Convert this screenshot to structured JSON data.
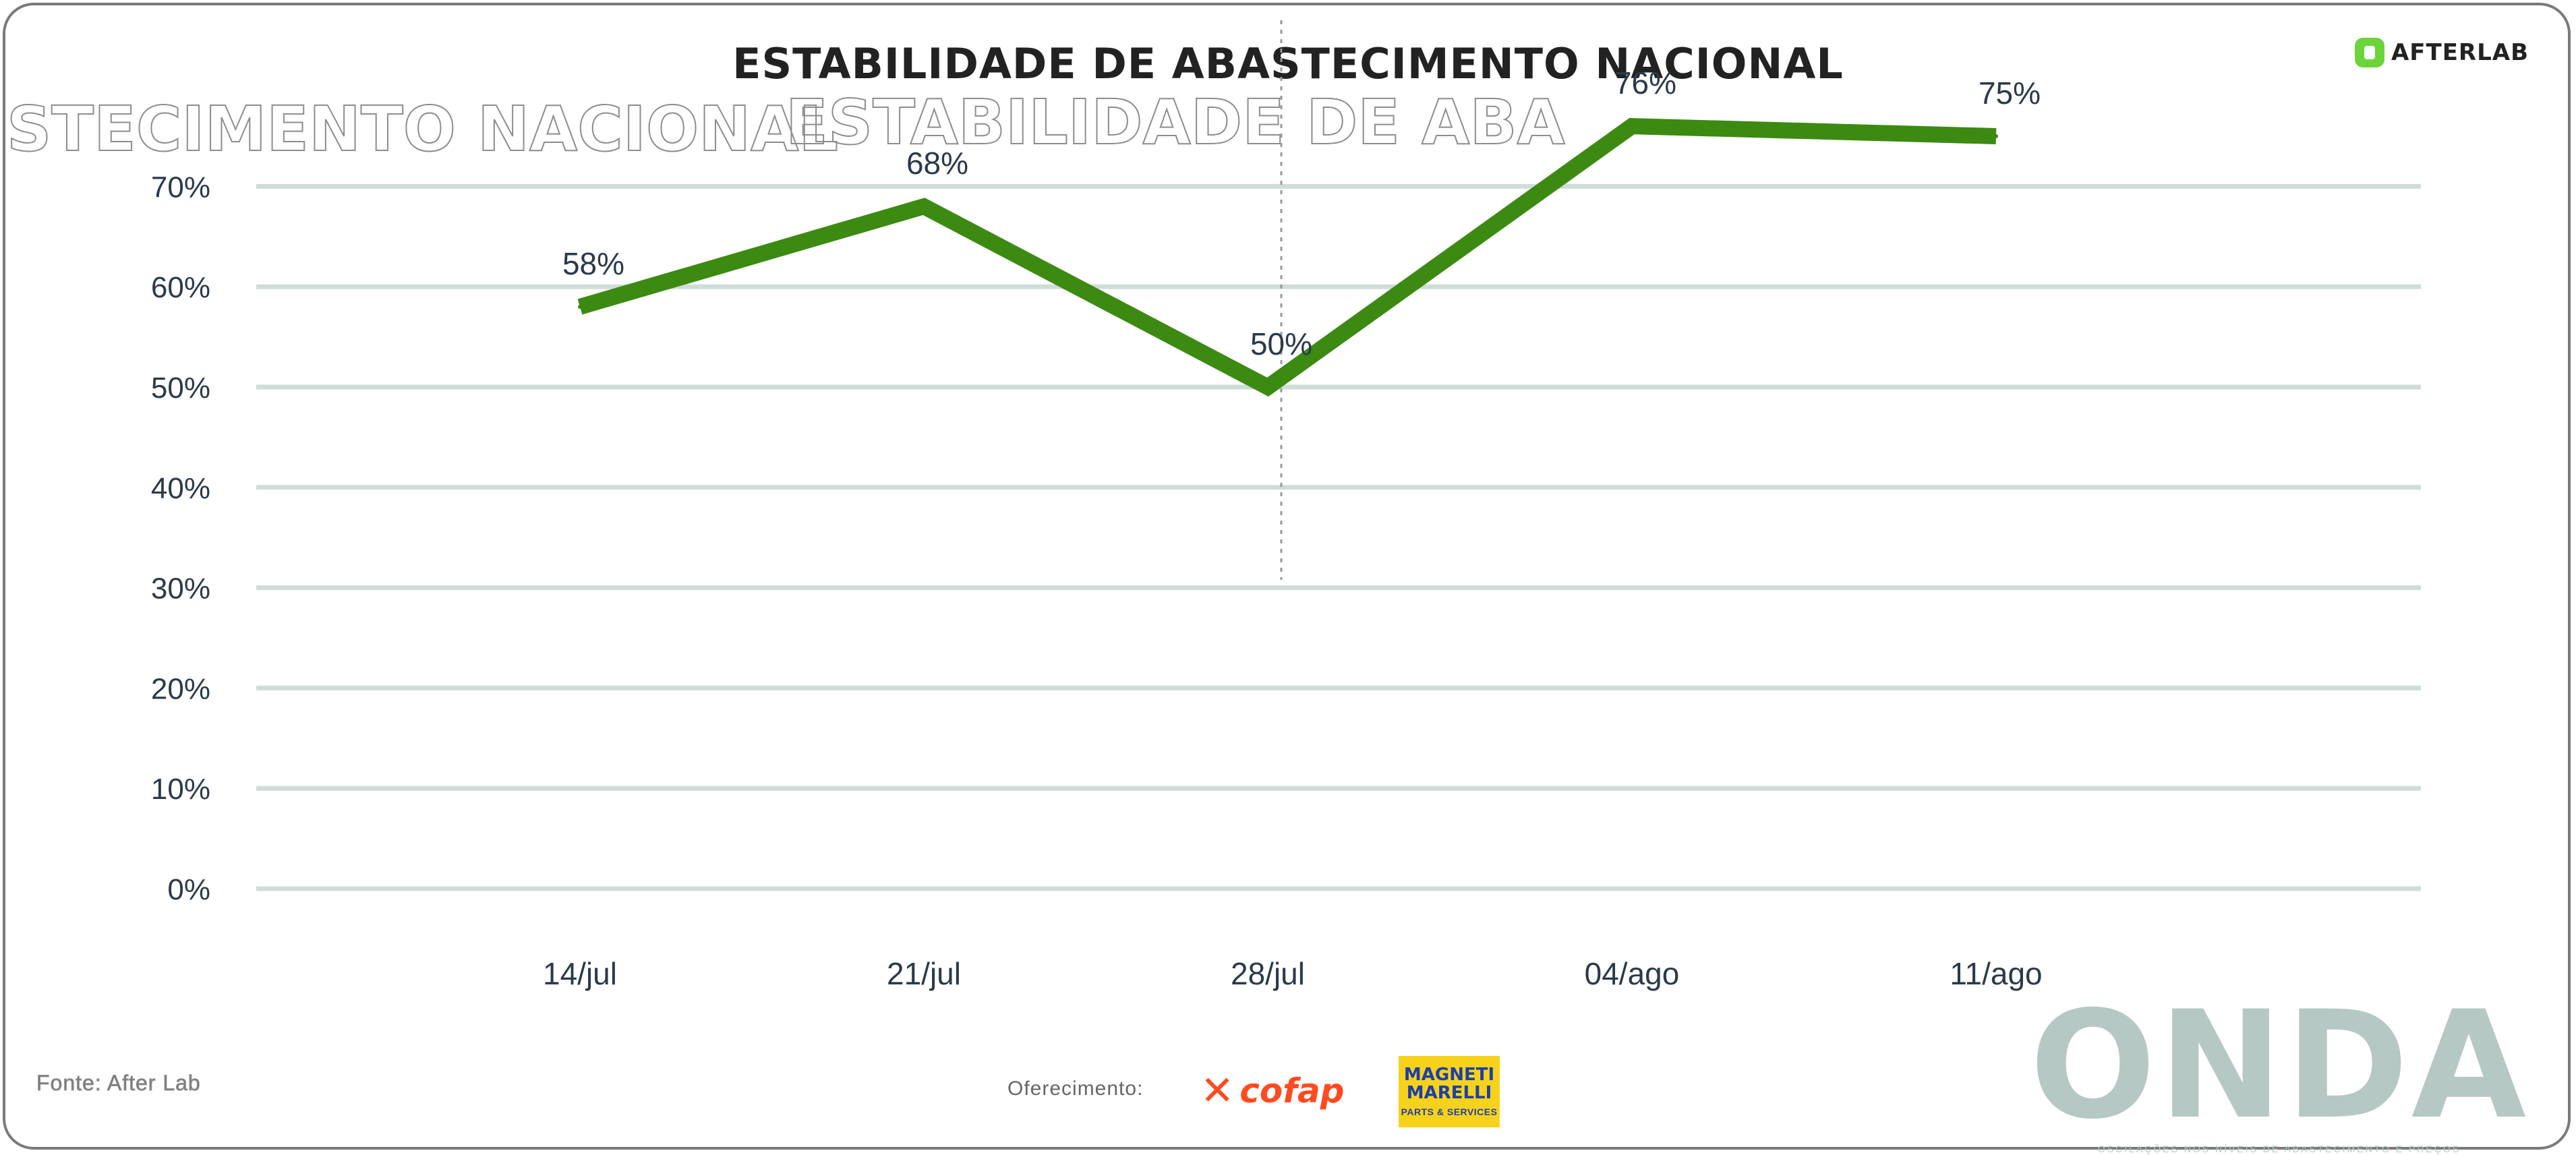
{
  "chart_data": {
    "type": "line",
    "title": "ESTABILIDADE DE ABASTECIMENTO NACIONAL",
    "categories": [
      "14/jul",
      "21/jul",
      "28/jul",
      "04/ago",
      "11/ago"
    ],
    "series": [
      {
        "values": [
          58,
          68,
          50,
          76,
          75
        ]
      }
    ],
    "data_labels": [
      "58%",
      "68%",
      "50%",
      "76%",
      "75%"
    ],
    "y_ticks": [
      "0%",
      "10%",
      "20%",
      "30%",
      "40%",
      "50%",
      "60%",
      "70%"
    ],
    "ylim": [
      0,
      75
    ],
    "grid": true,
    "line_color": "#3c8a12",
    "grid_color": "#cfddd9",
    "xlabel": "",
    "ylabel": ""
  },
  "brand": {
    "name": "AFTERLAB",
    "color": "#6bd43a"
  },
  "footer": {
    "source": "Fonte: After Lab",
    "sponsor_label": "Oferecimento:",
    "sponsor_1": "cofap",
    "sponsor_2_top": "MAGNETI MARELLI",
    "sponsor_2_bottom": "PARTS & SERVICES"
  },
  "logo": {
    "word": "ONDA",
    "tagline": "OSCILAÇÕES NOS NÍVEIS DE ABASTECIMENTO E PREÇOS"
  }
}
